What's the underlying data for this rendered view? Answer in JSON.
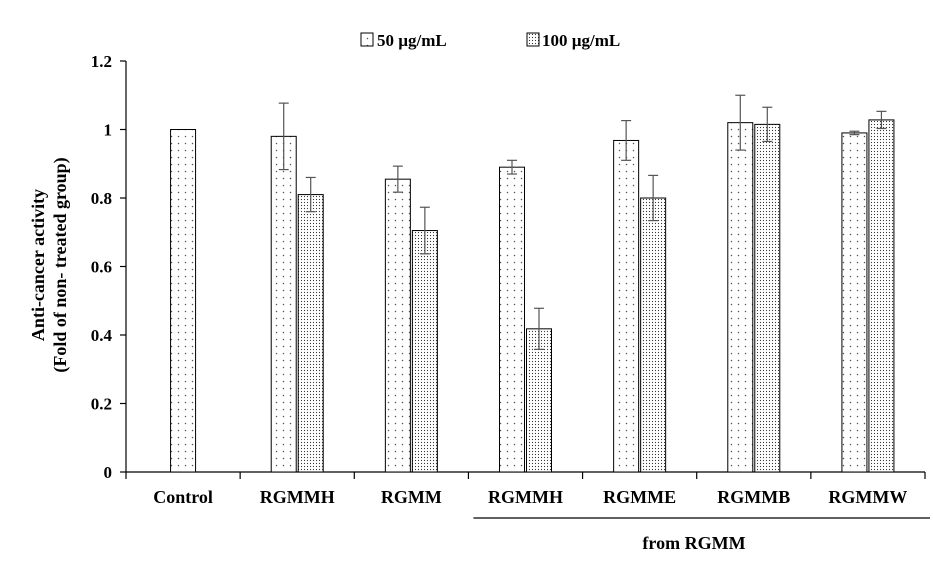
{
  "chart_data": {
    "type": "bar",
    "title": "",
    "ylabel_line1": "Anti-cancer activity",
    "ylabel_line2": "(Fold of non- treated group)",
    "xlabel": "",
    "ylim": [
      0,
      1.2
    ],
    "yticks": [
      "0",
      "0.2",
      "0.4",
      "0.6",
      "0.8",
      "1",
      "1.2"
    ],
    "grid": false,
    "legend_position": "top-center",
    "categories": [
      "Control",
      "RGMMH",
      "RGMM",
      "RGMMH",
      "RGMME",
      "RGMMB",
      "RGMMW"
    ],
    "group_label": "from RGMM",
    "series": [
      {
        "name": "50 µg/mL",
        "pattern": "dots",
        "values": [
          1.0,
          0.98,
          0.855,
          0.89,
          0.968,
          1.02,
          0.99
        ],
        "errors": [
          0,
          0.097,
          0.038,
          0.02,
          0.058,
          0.08,
          0.005
        ]
      },
      {
        "name": "100 µg/mL",
        "pattern": "dense-dots",
        "values": [
          null,
          0.81,
          0.705,
          0.418,
          0.8,
          1.015,
          1.028
        ],
        "errors": [
          0,
          0.05,
          0.068,
          0.06,
          0.066,
          0.05,
          0.025
        ]
      }
    ]
  }
}
